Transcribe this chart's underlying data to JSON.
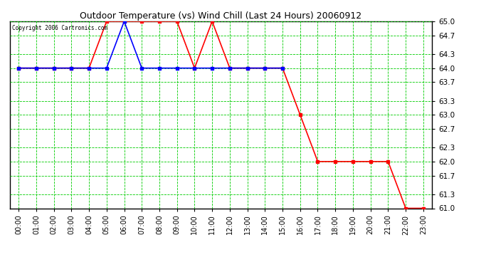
{
  "title": "Outdoor Temperature (vs) Wind Chill (Last 24 Hours) 20060912",
  "copyright_text": "Copyright 2006 Cartronics.com",
  "xlim_min": -0.5,
  "xlim_max": 23.5,
  "ylim": [
    61.0,
    65.0
  ],
  "yticks": [
    61.0,
    61.3,
    61.7,
    62.0,
    62.3,
    62.7,
    63.0,
    63.3,
    63.7,
    64.0,
    64.3,
    64.7,
    65.0
  ],
  "xtick_labels": [
    "00:00",
    "01:00",
    "02:00",
    "03:00",
    "04:00",
    "05:00",
    "06:00",
    "07:00",
    "08:00",
    "09:00",
    "10:00",
    "11:00",
    "12:00",
    "13:00",
    "14:00",
    "15:00",
    "16:00",
    "17:00",
    "18:00",
    "19:00",
    "20:00",
    "21:00",
    "22:00",
    "23:00"
  ],
  "bg_color": "#ffffff",
  "grid_color": "#00cc00",
  "temp_color": "#ff0000",
  "wind_chill_color": "#0000ff",
  "temp_x": [
    0,
    1,
    2,
    3,
    4,
    5,
    6,
    7,
    8,
    9,
    10,
    11,
    12,
    13,
    14,
    15,
    16,
    17,
    18,
    19,
    20,
    21,
    22,
    23
  ],
  "temp_y": [
    64.0,
    64.0,
    64.0,
    64.0,
    64.0,
    65.0,
    65.0,
    65.0,
    65.0,
    65.0,
    64.0,
    65.0,
    64.0,
    64.0,
    64.0,
    64.0,
    63.0,
    62.0,
    62.0,
    62.0,
    62.0,
    62.0,
    61.0,
    61.0
  ],
  "wind_x": [
    0,
    1,
    2,
    3,
    4,
    5,
    6,
    7,
    8,
    9,
    10,
    11,
    12,
    13,
    14,
    15
  ],
  "wind_y": [
    64.0,
    64.0,
    64.0,
    64.0,
    64.0,
    64.0,
    65.0,
    64.0,
    64.0,
    64.0,
    64.0,
    64.0,
    64.0,
    64.0,
    64.0,
    64.0
  ],
  "fig_width": 6.9,
  "fig_height": 3.75,
  "dpi": 100
}
